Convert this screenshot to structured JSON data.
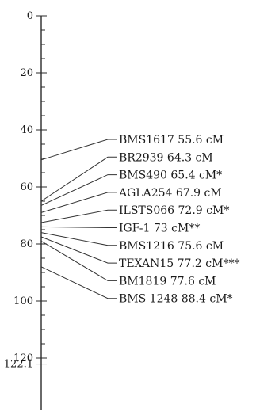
{
  "map": {
    "ticks": [
      {
        "value": 0,
        "label": "0"
      },
      {
        "value": 20,
        "label": "20"
      },
      {
        "value": 40,
        "label": "40"
      },
      {
        "value": 60,
        "label": "60"
      },
      {
        "value": 80,
        "label": "80"
      },
      {
        "value": 100,
        "label": "100"
      },
      {
        "value": 120,
        "label": "120"
      },
      {
        "value": 122.1,
        "label": "122.1"
      }
    ],
    "markers": [
      {
        "label": "BMS1617 55.6 cM",
        "position": 50.5
      },
      {
        "label": "BR2939 64.3 cM",
        "position": 65
      },
      {
        "label": "BMS490 65.4 cM*",
        "position": 66.5
      },
      {
        "label": "AGLA254 67.9 cM",
        "position": 69
      },
      {
        "label": "ILSTS066 72.9 cM*",
        "position": 72.5
      },
      {
        "label": "IGF-1 73 cM**",
        "position": 74
      },
      {
        "label": "BMS1216 75.6 cM",
        "position": 76
      },
      {
        "label": "TEXAN15 77.2 cM***",
        "position": 77.5
      },
      {
        "label": "BM1819 77.6 cM",
        "position": 79
      },
      {
        "label": "BMS 1248 88.4 cM*",
        "position": 88
      }
    ]
  }
}
